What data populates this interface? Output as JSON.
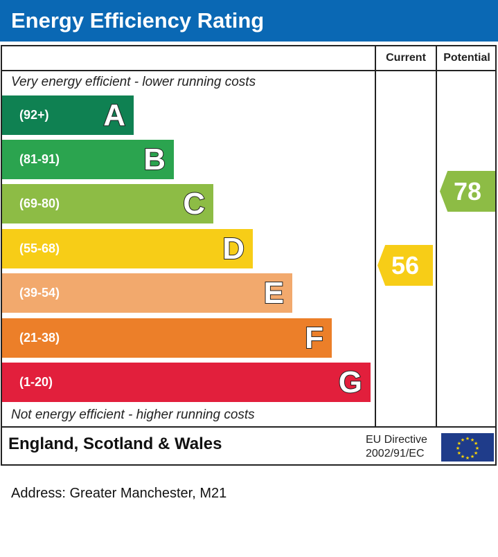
{
  "title": "Energy Efficiency Rating",
  "chart_data": {
    "type": "bar",
    "title": "Energy Efficiency Rating",
    "columns": [
      "Current",
      "Potential"
    ],
    "top_note": "Very energy efficient - lower running costs",
    "bottom_note": "Not energy efficient - higher running costs",
    "bands": [
      {
        "letter": "A",
        "range": "(92+)",
        "color": "#0f8152"
      },
      {
        "letter": "B",
        "range": "(81-91)",
        "color": "#2ba44f"
      },
      {
        "letter": "C",
        "range": "(69-80)",
        "color": "#8dbc45"
      },
      {
        "letter": "D",
        "range": "(55-68)",
        "color": "#f7cd17"
      },
      {
        "letter": "E",
        "range": "(39-54)",
        "color": "#f2a96d"
      },
      {
        "letter": "F",
        "range": "(21-38)",
        "color": "#ec7f29"
      },
      {
        "letter": "G",
        "range": "(1-20)",
        "color": "#e21f3c"
      }
    ],
    "current": {
      "value": "56",
      "band": "D",
      "color": "#f7cd17"
    },
    "potential": {
      "value": "78",
      "band": "C",
      "color": "#8dbc45"
    }
  },
  "footer": {
    "country": "England, Scotland & Wales",
    "directive_line1": "EU Directive",
    "directive_line2": "2002/91/EC",
    "flag_icon": "eu-flag-icon"
  },
  "address": "Address: Greater Manchester, M21"
}
